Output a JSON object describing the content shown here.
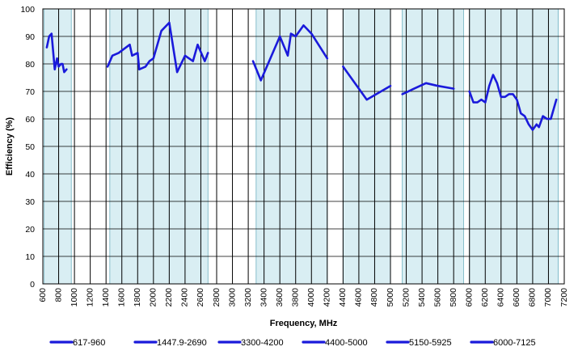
{
  "chart_data": {
    "type": "line",
    "title": "",
    "xlabel": "Frequency, MHz",
    "ylabel": "Efficiency (%)",
    "xlim": [
      600,
      7200
    ],
    "ylim": [
      0,
      100
    ],
    "x_ticks": [
      "600",
      "800",
      "1000",
      "1200",
      "1400",
      "1600",
      "1800",
      "2000",
      "2200",
      "2400",
      "2600",
      "2800",
      "3000",
      "3200",
      "3400",
      "3600",
      "3800",
      "4000",
      "4200",
      "4400",
      "4600",
      "4800",
      "5000",
      "5200",
      "5400",
      "5600",
      "5800",
      "6000",
      "6200",
      "6400",
      "6600",
      "6800",
      "7000",
      "7200"
    ],
    "y_ticks": [
      "0",
      "10",
      "20",
      "30",
      "40",
      "50",
      "60",
      "70",
      "80",
      "90",
      "100"
    ],
    "grid": true,
    "legend_position": "bottom",
    "line_color": "#1a1adb",
    "band_fill_color": "#d9eef3",
    "bands": [
      [
        617,
        960
      ],
      [
        1447.9,
        2690
      ],
      [
        3300,
        4200
      ],
      [
        4400,
        5000
      ],
      [
        5150,
        5925
      ],
      [
        6000,
        7125
      ]
    ],
    "series": [
      {
        "name": "617-960",
        "points": [
          [
            650,
            86
          ],
          [
            680,
            90
          ],
          [
            710,
            91
          ],
          [
            750,
            78
          ],
          [
            780,
            82
          ],
          [
            800,
            79
          ],
          [
            830,
            80
          ],
          [
            850,
            80
          ],
          [
            870,
            77
          ],
          [
            900,
            78
          ]
        ]
      },
      {
        "name": "1447.9-2690",
        "points": [
          [
            1420,
            79
          ],
          [
            1480,
            83
          ],
          [
            1560,
            84
          ],
          [
            1700,
            87
          ],
          [
            1730,
            83
          ],
          [
            1800,
            84
          ],
          [
            1820,
            78
          ],
          [
            1900,
            79
          ],
          [
            1950,
            81
          ],
          [
            2000,
            82
          ],
          [
            2100,
            92
          ],
          [
            2200,
            95
          ],
          [
            2300,
            77
          ],
          [
            2400,
            83
          ],
          [
            2500,
            81
          ],
          [
            2560,
            87
          ],
          [
            2650,
            81
          ],
          [
            2690,
            84
          ]
        ]
      },
      {
        "name": "3300-4200",
        "points": [
          [
            3260,
            81
          ],
          [
            3360,
            74
          ],
          [
            3600,
            90
          ],
          [
            3700,
            83
          ],
          [
            3740,
            91
          ],
          [
            3800,
            90
          ],
          [
            3900,
            94
          ],
          [
            4000,
            91
          ],
          [
            4200,
            82
          ]
        ]
      },
      {
        "name": "4400-5000",
        "points": [
          [
            4400,
            79
          ],
          [
            4700,
            67
          ],
          [
            5000,
            72
          ]
        ]
      },
      {
        "name": "5150-5925",
        "points": [
          [
            5150,
            69
          ],
          [
            5300,
            71
          ],
          [
            5450,
            73
          ],
          [
            5600,
            72
          ],
          [
            5800,
            71
          ]
        ]
      },
      {
        "name": "6000-7125",
        "points": [
          [
            6000,
            70
          ],
          [
            6050,
            66
          ],
          [
            6100,
            66
          ],
          [
            6150,
            67
          ],
          [
            6200,
            66
          ],
          [
            6250,
            72
          ],
          [
            6300,
            76
          ],
          [
            6350,
            73
          ],
          [
            6400,
            68
          ],
          [
            6450,
            68
          ],
          [
            6500,
            69
          ],
          [
            6550,
            69
          ],
          [
            6600,
            67
          ],
          [
            6650,
            62
          ],
          [
            6700,
            61
          ],
          [
            6750,
            58
          ],
          [
            6800,
            56
          ],
          [
            6850,
            58
          ],
          [
            6880,
            57
          ],
          [
            6930,
            61
          ],
          [
            6980,
            60
          ],
          [
            7030,
            60
          ],
          [
            7100,
            67
          ]
        ]
      }
    ]
  }
}
